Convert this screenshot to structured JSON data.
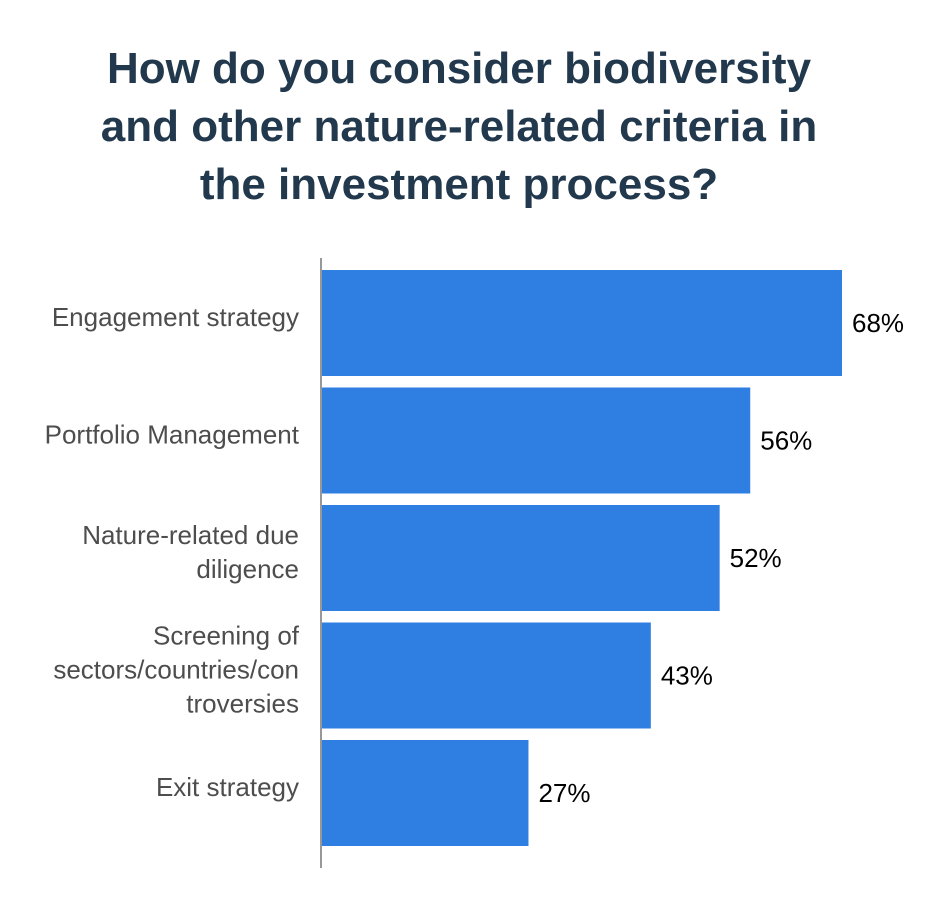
{
  "title_lines": [
    "How do you consider biodiversity",
    "and other nature-related criteria in",
    "the investment process?"
  ],
  "colors": {
    "bar": "#2f7fe3",
    "title": "#22384d",
    "axis": "#777777"
  },
  "chart_data": {
    "type": "bar",
    "orientation": "horizontal",
    "title": "How do you consider biodiversity and other nature-related criteria in the investment process?",
    "categories": [
      "Engagement strategy",
      "Portfolio Management",
      "Nature-related due diligence",
      "Screening of sectors/countries/controversies",
      "Exit strategy"
    ],
    "category_label_lines": [
      [
        "Engagement strategy"
      ],
      [
        "Portfolio Management"
      ],
      [
        "Nature-related due",
        "diligence"
      ],
      [
        "Screening of",
        "sectors/countries/con",
        "troversies"
      ],
      [
        "Exit strategy"
      ]
    ],
    "values": [
      68,
      56,
      52,
      43,
      27
    ],
    "value_labels": [
      "68%",
      "56%",
      "52%",
      "43%",
      "27%"
    ],
    "unit": "%",
    "xlim": [
      0,
      68
    ],
    "grid": false,
    "legend": "none"
  }
}
